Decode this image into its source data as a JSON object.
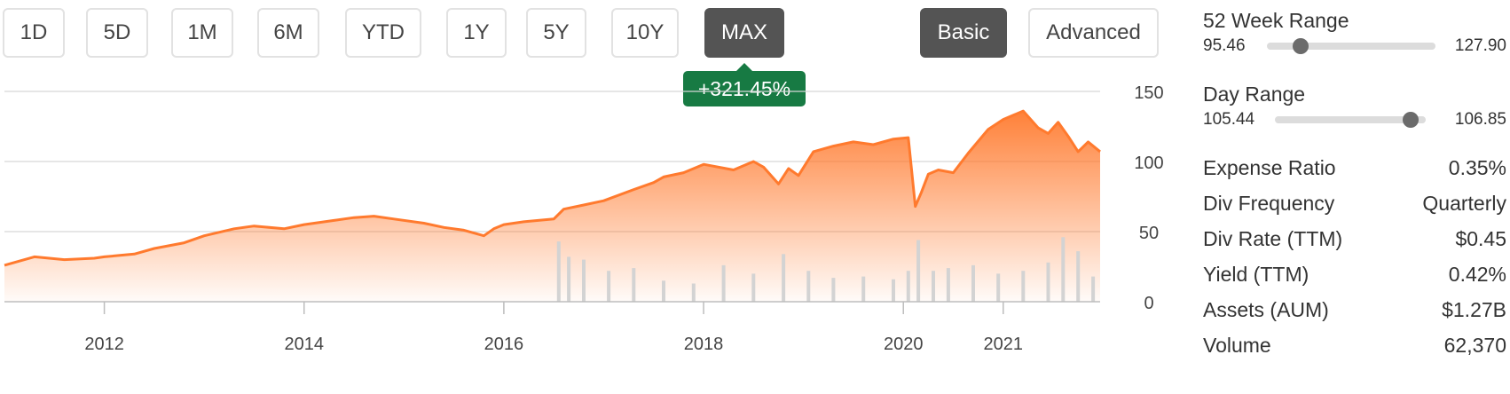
{
  "time_ranges": [
    {
      "label": "1D",
      "active": false
    },
    {
      "label": "5D",
      "active": false
    },
    {
      "label": "1M",
      "active": false
    },
    {
      "label": "6M",
      "active": false
    },
    {
      "label": "YTD",
      "active": false
    },
    {
      "label": "1Y",
      "active": false
    },
    {
      "label": "5Y",
      "active": false
    },
    {
      "label": "10Y",
      "active": false
    },
    {
      "label": "MAX",
      "active": true
    }
  ],
  "view_modes": [
    {
      "label": "Basic",
      "active": true
    },
    {
      "label": "Advanced",
      "active": false
    }
  ],
  "change_badge": "+321.45%",
  "colors": {
    "line": "#ff7a2e",
    "volume": "#d3d3d3",
    "badge": "#177a43",
    "active_button": "#545454"
  },
  "chart_data": {
    "type": "area",
    "x_ticks": [
      "2012",
      "2014",
      "2016",
      "2018",
      "2020",
      "2021"
    ],
    "y_ticks": [
      0,
      50,
      100,
      150
    ],
    "xlim": [
      2011.0,
      2021.97
    ],
    "ylim": [
      0,
      150
    ],
    "grid": true,
    "y_axis_position": "right",
    "series": [
      {
        "x": [
          2011.0,
          2011.3,
          2011.6,
          2011.9,
          2012.0,
          2012.3,
          2012.5,
          2012.8,
          2013.0,
          2013.3,
          2013.5,
          2013.8,
          2014.0,
          2014.3,
          2014.5,
          2014.7,
          2014.9,
          2015.2,
          2015.4,
          2015.6,
          2015.8,
          2015.9,
          2016.0,
          2016.2,
          2016.5,
          2016.6,
          2016.8,
          2017.0,
          2017.3,
          2017.5,
          2017.6,
          2017.8,
          2018.0,
          2018.3,
          2018.5,
          2018.6,
          2018.75,
          2018.85,
          2018.95,
          2019.1,
          2019.3,
          2019.5,
          2019.7,
          2019.9,
          2020.05,
          2020.12,
          2020.18,
          2020.25,
          2020.35,
          2020.5,
          2020.65,
          2020.85,
          2021.0,
          2021.2,
          2021.35,
          2021.45,
          2021.55,
          2021.65,
          2021.75,
          2021.85,
          2021.97
        ],
        "y": [
          26,
          32,
          30,
          31,
          32,
          34,
          38,
          42,
          47,
          52,
          54,
          52,
          55,
          58,
          60,
          61,
          59,
          56,
          53,
          51,
          47,
          52,
          55,
          57,
          59,
          66,
          69,
          72,
          80,
          85,
          89,
          92,
          98,
          94,
          100,
          96,
          84,
          95,
          90,
          107,
          111,
          114,
          112,
          116,
          117,
          68,
          78,
          91,
          94,
          92,
          106,
          123,
          130,
          136,
          124,
          120,
          128,
          118,
          107,
          114,
          107
        ]
      }
    ],
    "volume": {
      "x": [
        2016.55,
        2016.65,
        2016.8,
        2017.05,
        2017.3,
        2017.6,
        2017.9,
        2018.2,
        2018.5,
        2018.8,
        2019.05,
        2019.3,
        2019.6,
        2019.9,
        2020.05,
        2020.15,
        2020.3,
        2020.45,
        2020.7,
        2020.95,
        2021.2,
        2021.45,
        2021.6,
        2021.75,
        2021.9
      ],
      "y": [
        43,
        32,
        30,
        22,
        24,
        15,
        13,
        26,
        20,
        34,
        22,
        17,
        18,
        16,
        22,
        44,
        22,
        24,
        26,
        20,
        22,
        28,
        46,
        36,
        18
      ]
    }
  },
  "stats": {
    "week52": {
      "title": "52 Week Range",
      "low": "95.46",
      "high": "127.90",
      "position": 0.2
    },
    "day": {
      "title": "Day Range",
      "low": "105.44",
      "high": "106.85",
      "position": 0.9
    },
    "rows": [
      {
        "label": "Expense Ratio",
        "value": "0.35%"
      },
      {
        "label": "Div Frequency",
        "value": "Quarterly"
      },
      {
        "label": "Div Rate (TTM)",
        "value": "$0.45"
      },
      {
        "label": "Yield (TTM)",
        "value": "0.42%"
      },
      {
        "label": "Assets (AUM)",
        "value": "$1.27B"
      },
      {
        "label": "Volume",
        "value": "62,370"
      }
    ]
  }
}
